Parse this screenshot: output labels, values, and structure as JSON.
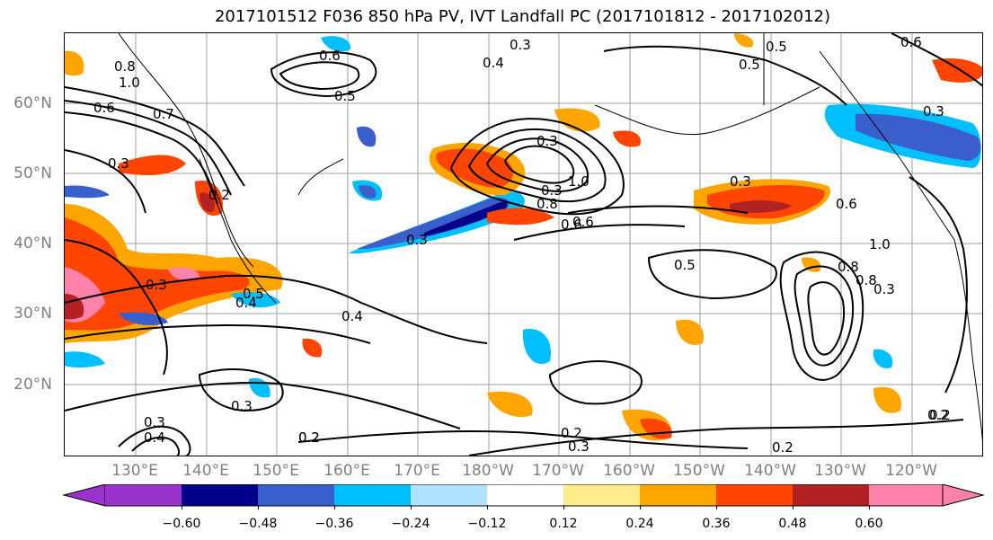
{
  "title": "2017101512 F036 850 hPa PV, IVT Landfall PC (2017101812 - 2017102012)",
  "lat_labels": [
    "60°N",
    "50°N",
    "40°N",
    "30°N",
    "20°N"
  ],
  "lon_labels": [
    "130°E",
    "140°E",
    "150°E",
    "160°E",
    "170°E",
    "180°W",
    "170°W",
    "160°W",
    "150°W",
    "140°W",
    "130°W",
    "120°W"
  ],
  "colorbar": {
    "colors": [
      "#9a32cd",
      "#00008b",
      "#3a5fcd",
      "#00bfff",
      "#b0e2ff",
      "#ffffff",
      "#ffec8b",
      "#ffa500",
      "#ff4500",
      "#b22222",
      "#ff82ab"
    ],
    "ticks": [
      "−0.60",
      "−0.48",
      "−0.36",
      "−0.24",
      "−0.12",
      "0.12",
      "0.24",
      "0.36",
      "0.48",
      "0.60"
    ]
  },
  "contour_labels": [
    "0.6",
    "0.4",
    "0.3",
    "0.8",
    "1.0",
    "0.6",
    "0.7",
    "0.3",
    "0.2",
    "0.5",
    "0.3",
    "0.3",
    "1.0",
    "0.8",
    "0.6",
    "0.3",
    "0.5",
    "0.4",
    "0.5",
    "0.4",
    "0.3",
    "0.2",
    "0.3",
    "0.4",
    "0.3",
    "0.2",
    "0.2",
    "0.3",
    "0.2",
    "0.6",
    "0.8",
    "1.0",
    "0.3",
    "0.5",
    "0.6",
    "0.8",
    "0.3",
    "0.6",
    "0.5",
    "0.3",
    "0.2",
    "0.2"
  ]
}
